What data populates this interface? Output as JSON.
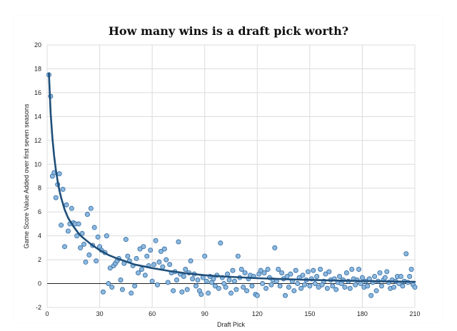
{
  "chart_data": {
    "type": "scatter",
    "title": "How many wins is a draft pick worth?",
    "xlabel": "Draft Pick",
    "ylabel": "Game Score Value Added over first seven seasons",
    "xlim": [
      0,
      210
    ],
    "ylim": [
      -2,
      20
    ],
    "xticks": [
      0,
      30,
      60,
      90,
      120,
      150,
      180,
      210
    ],
    "yticks": [
      -2,
      0,
      2,
      4,
      6,
      8,
      10,
      12,
      14,
      16,
      18,
      20
    ],
    "grid": true,
    "legend": "none",
    "colors": {
      "point_fill": "#8db8dd",
      "point_stroke": "#2f6aa3",
      "trend": "#1f4e79",
      "grid": "#dcdcdc",
      "zero_line": "#222222"
    },
    "series": [
      {
        "kind": "points",
        "points": [
          [
            1,
            17.5
          ],
          [
            2,
            15.7
          ],
          [
            3,
            9.0
          ],
          [
            4,
            9.3
          ],
          [
            5,
            7.2
          ],
          [
            6,
            8.3
          ],
          [
            7,
            9.2
          ],
          [
            8,
            4.9
          ],
          [
            9,
            7.9
          ],
          [
            10,
            3.1
          ],
          [
            11,
            6.6
          ],
          [
            12,
            4.4
          ],
          [
            13,
            5.0
          ],
          [
            14,
            6.3
          ],
          [
            15,
            5.1
          ],
          [
            16,
            5.0
          ],
          [
            17,
            4.0
          ],
          [
            18,
            5.0
          ],
          [
            19,
            3.0
          ],
          [
            20,
            4.2
          ],
          [
            21,
            3.3
          ],
          [
            22,
            1.8
          ],
          [
            23,
            5.8
          ],
          [
            24,
            2.4
          ],
          [
            25,
            6.3
          ],
          [
            26,
            3.2
          ],
          [
            27,
            4.7
          ],
          [
            28,
            1.9
          ],
          [
            29,
            3.9
          ],
          [
            30,
            3.1
          ],
          [
            31,
            2.8
          ],
          [
            32,
            -0.7
          ],
          [
            33,
            2.6
          ],
          [
            34,
            4.0
          ],
          [
            35,
            0.0
          ],
          [
            36,
            1.3
          ],
          [
            37,
            -0.3
          ],
          [
            38,
            1.5
          ],
          [
            39,
            1.7
          ],
          [
            40,
            1.9
          ],
          [
            41,
            2.1
          ],
          [
            42,
            0.3
          ],
          [
            43,
            -0.5
          ],
          [
            44,
            1.7
          ],
          [
            45,
            3.7
          ],
          [
            46,
            2.3
          ],
          [
            47,
            1.9
          ],
          [
            48,
            -0.8
          ],
          [
            49,
            1.5
          ],
          [
            50,
            -0.2
          ],
          [
            51,
            2.1
          ],
          [
            52,
            0.9
          ],
          [
            53,
            2.9
          ],
          [
            54,
            1.2
          ],
          [
            55,
            3.1
          ],
          [
            56,
            0.7
          ],
          [
            57,
            2.3
          ],
          [
            58,
            1.5
          ],
          [
            59,
            2.8
          ],
          [
            60,
            0.2
          ],
          [
            61,
            1.6
          ],
          [
            62,
            3.6
          ],
          [
            63,
            -0.1
          ],
          [
            64,
            1.8
          ],
          [
            65,
            2.7
          ],
          [
            66,
            1.4
          ],
          [
            67,
            2.9
          ],
          [
            68,
            2.0
          ],
          [
            69,
            0.1
          ],
          [
            70,
            1.6
          ],
          [
            71,
            0.9
          ],
          [
            72,
            -0.6
          ],
          [
            73,
            1.0
          ],
          [
            74,
            0.3
          ],
          [
            75,
            3.5
          ],
          [
            76,
            0.8
          ],
          [
            77,
            -0.7
          ],
          [
            78,
            0.6
          ],
          [
            79,
            1.2
          ],
          [
            80,
            -0.5
          ],
          [
            81,
            0.9
          ],
          [
            82,
            1.9
          ],
          [
            83,
            0.4
          ],
          [
            84,
            0.8
          ],
          [
            85,
            -0.2
          ],
          [
            86,
            0.3
          ],
          [
            87,
            -0.6
          ],
          [
            88,
            -0.9
          ],
          [
            89,
            0.5
          ],
          [
            90,
            2.3
          ],
          [
            91,
            0.2
          ],
          [
            92,
            -0.8
          ],
          [
            93,
            0.6
          ],
          [
            94,
            0.1
          ],
          [
            95,
            0.4
          ],
          [
            96,
            -0.2
          ],
          [
            97,
            0.7
          ],
          [
            98,
            -0.4
          ],
          [
            99,
            3.4
          ],
          [
            100,
            0.5
          ],
          [
            101,
            0.0
          ],
          [
            102,
            -0.3
          ],
          [
            103,
            0.8
          ],
          [
            104,
            0.3
          ],
          [
            105,
            -0.8
          ],
          [
            106,
            1.1
          ],
          [
            107,
            0.2
          ],
          [
            108,
            -0.5
          ],
          [
            109,
            2.3
          ],
          [
            110,
            0.5
          ],
          [
            111,
            1.2
          ],
          [
            112,
            -0.3
          ],
          [
            113,
            0.9
          ],
          [
            114,
            -0.6
          ],
          [
            115,
            0.4
          ],
          [
            116,
            0.7
          ],
          [
            117,
            -0.2
          ],
          [
            118,
            0.6
          ],
          [
            119,
            -0.9
          ],
          [
            120,
            -1.0
          ],
          [
            121,
            0.8
          ],
          [
            122,
            1.1
          ],
          [
            123,
            0.0
          ],
          [
            124,
            0.9
          ],
          [
            125,
            -0.4
          ],
          [
            126,
            1.2
          ],
          [
            127,
            0.5
          ],
          [
            128,
            -0.1
          ],
          [
            129,
            0.3
          ],
          [
            130,
            3.0
          ],
          [
            131,
            0.2
          ],
          [
            132,
            1.2
          ],
          [
            133,
            -0.2
          ],
          [
            134,
            0.9
          ],
          [
            135,
            0.4
          ],
          [
            136,
            -1.0
          ],
          [
            137,
            0.6
          ],
          [
            138,
            -0.3
          ],
          [
            139,
            0.8
          ],
          [
            140,
            0.2
          ],
          [
            141,
            -0.6
          ],
          [
            142,
            1.1
          ],
          [
            143,
            0.0
          ],
          [
            144,
            0.5
          ],
          [
            145,
            -0.4
          ],
          [
            146,
            0.7
          ],
          [
            147,
            -0.1
          ],
          [
            148,
            0.3
          ],
          [
            149,
            1.0
          ],
          [
            150,
            -0.2
          ],
          [
            151,
            0.4
          ],
          [
            152,
            1.1
          ],
          [
            153,
            0.0
          ],
          [
            154,
            0.6
          ],
          [
            155,
            -0.3
          ],
          [
            156,
            1.2
          ],
          [
            157,
            -0.1
          ],
          [
            158,
            0.2
          ],
          [
            159,
            0.8
          ],
          [
            160,
            -0.4
          ],
          [
            161,
            1.0
          ],
          [
            162,
            0.3
          ],
          [
            163,
            -0.2
          ],
          [
            164,
            0.4
          ],
          [
            165,
            -0.5
          ],
          [
            166,
            0.1
          ],
          [
            167,
            0.6
          ],
          [
            168,
            0.0
          ],
          [
            169,
            0.3
          ],
          [
            170,
            -0.3
          ],
          [
            171,
            0.9
          ],
          [
            172,
            0.2
          ],
          [
            173,
            -0.4
          ],
          [
            174,
            1.2
          ],
          [
            175,
            0.4
          ],
          [
            176,
            -0.1
          ],
          [
            177,
            0.3
          ],
          [
            178,
            1.2
          ],
          [
            179,
            0.0
          ],
          [
            180,
            0.5
          ],
          [
            181,
            -0.3
          ],
          [
            182,
            0.2
          ],
          [
            183,
            -0.2
          ],
          [
            184,
            0.4
          ],
          [
            185,
            -1.0
          ],
          [
            186,
            0.1
          ],
          [
            187,
            0.6
          ],
          [
            188,
            -0.6
          ],
          [
            189,
            0.2
          ],
          [
            190,
            0.9
          ],
          [
            191,
            -0.2
          ],
          [
            192,
            0.3
          ],
          [
            193,
            0.5
          ],
          [
            194,
            1.0
          ],
          [
            195,
            0.1
          ],
          [
            196,
            -0.4
          ],
          [
            197,
            0.3
          ],
          [
            198,
            -0.3
          ],
          [
            199,
            0.2
          ],
          [
            200,
            0.6
          ],
          [
            201,
            0.0
          ],
          [
            202,
            0.6
          ],
          [
            203,
            -0.2
          ],
          [
            204,
            0.2
          ],
          [
            205,
            2.5
          ],
          [
            206,
            0.1
          ],
          [
            207,
            0.6
          ],
          [
            208,
            1.2
          ],
          [
            209,
            -0.1
          ],
          [
            210,
            -0.3
          ]
        ]
      },
      {
        "kind": "trend",
        "points": [
          [
            1,
            17.6
          ],
          [
            2,
            14.3
          ],
          [
            3,
            12.2
          ],
          [
            4,
            10.7
          ],
          [
            5,
            9.5
          ],
          [
            6,
            8.6
          ],
          [
            7,
            7.8
          ],
          [
            8,
            7.2
          ],
          [
            9,
            6.7
          ],
          [
            10,
            6.2
          ],
          [
            12,
            5.5
          ],
          [
            15,
            4.8
          ],
          [
            18,
            4.2
          ],
          [
            20,
            3.9
          ],
          [
            25,
            3.3
          ],
          [
            30,
            2.8
          ],
          [
            35,
            2.4
          ],
          [
            40,
            2.1
          ],
          [
            50,
            1.6
          ],
          [
            60,
            1.3
          ],
          [
            70,
            1.05
          ],
          [
            80,
            0.85
          ],
          [
            90,
            0.7
          ],
          [
            100,
            0.6
          ],
          [
            120,
            0.45
          ],
          [
            140,
            0.35
          ],
          [
            160,
            0.28
          ],
          [
            180,
            0.22
          ],
          [
            200,
            0.17
          ],
          [
            210,
            0.15
          ]
        ]
      }
    ]
  }
}
